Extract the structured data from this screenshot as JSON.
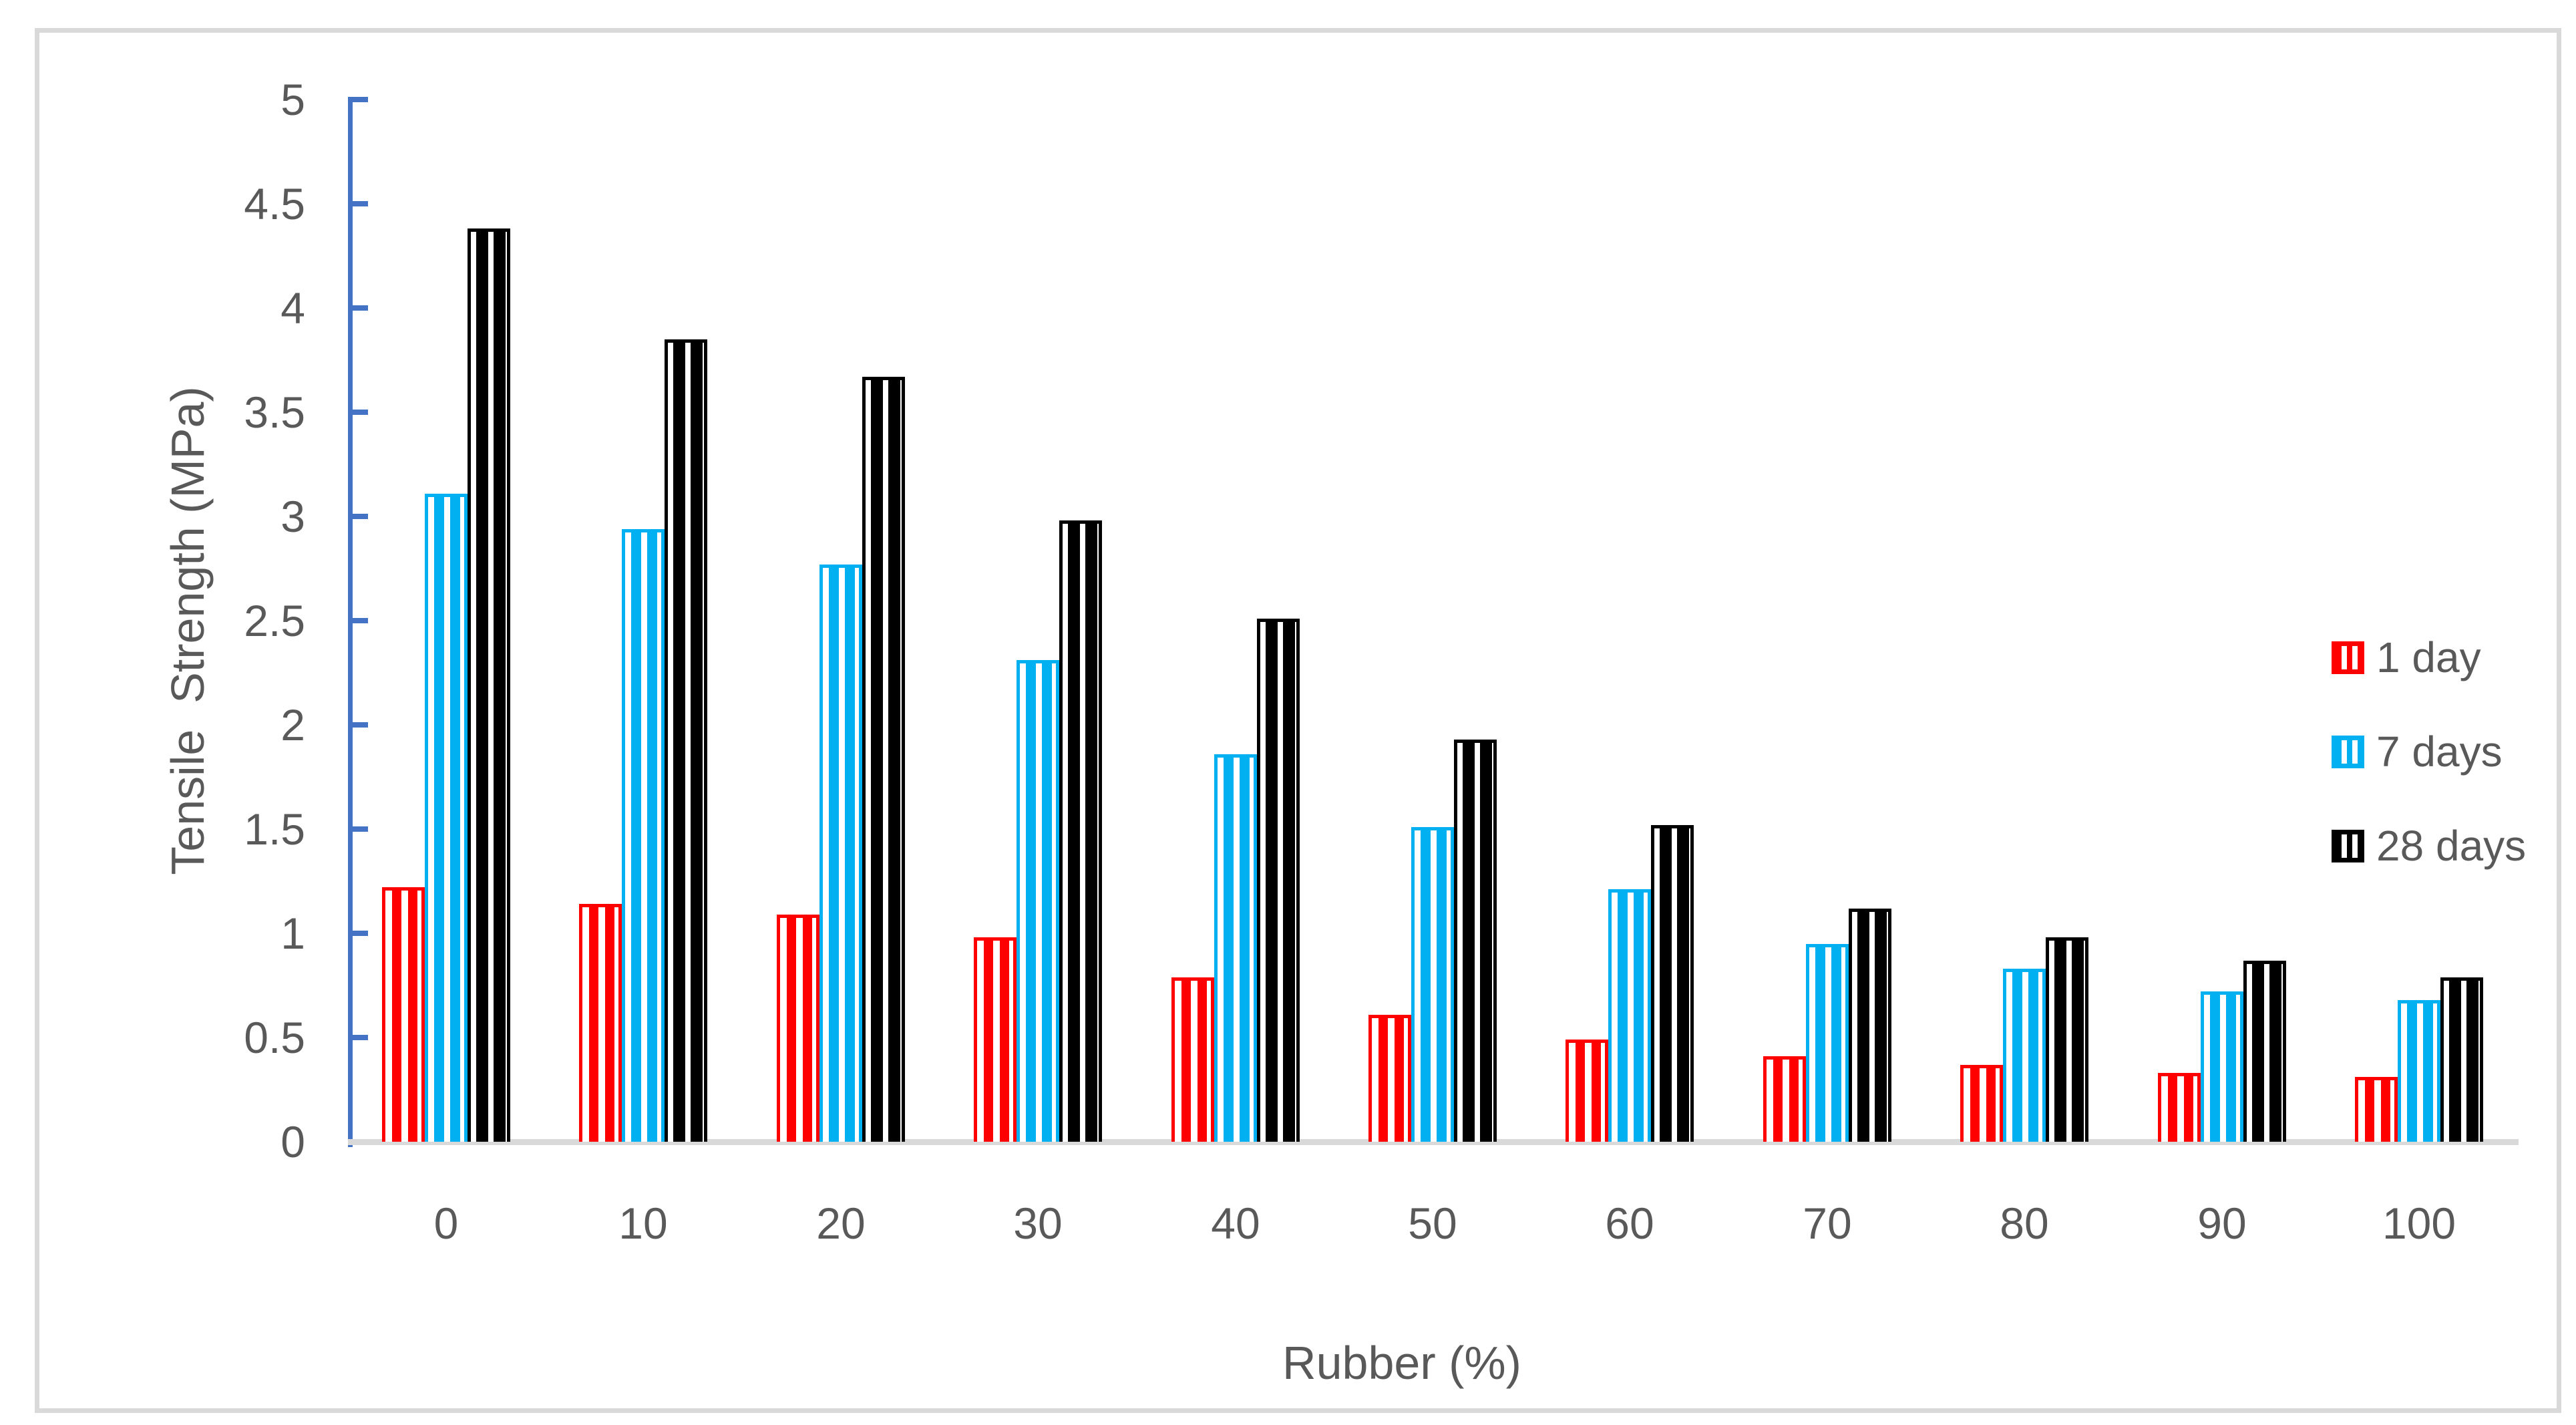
{
  "figure": {
    "description": "Grouped bar chart of tensile strength versus rubber content with striped pattern bars"
  },
  "colors": {
    "axis_line": "#4472C4",
    "label_text": "#595959",
    "x_baseline": "#D9D9D9",
    "figure_border": "#D9D9D9",
    "series_1_day": "#FF0000",
    "series_7_days": "#00B0F0",
    "series_28_days": "#000000"
  },
  "chart_data": {
    "type": "bar",
    "title": "",
    "xlabel": "Rubber (%)",
    "ylabel": "Tensile  Strength (MPa)",
    "categories": [
      "0",
      "10",
      "20",
      "30",
      "40",
      "50",
      "60",
      "70",
      "80",
      "90",
      "100"
    ],
    "series": [
      {
        "name": "1 day",
        "color": "#FF0000",
        "values": [
          1.22,
          1.14,
          1.09,
          0.98,
          0.79,
          0.61,
          0.49,
          0.41,
          0.37,
          0.33,
          0.31
        ]
      },
      {
        "name": "7 days",
        "color": "#00B0F0",
        "values": [
          3.11,
          2.94,
          2.77,
          2.31,
          1.86,
          1.51,
          1.21,
          0.95,
          0.83,
          0.72,
          0.68
        ]
      },
      {
        "name": "28 days",
        "color": "#000000",
        "values": [
          4.38,
          3.85,
          3.67,
          2.98,
          2.51,
          1.93,
          1.52,
          1.12,
          0.98,
          0.87,
          0.79
        ]
      }
    ],
    "ylim": [
      0,
      5
    ],
    "ytick_step": 0.5,
    "yticks": [
      "0",
      "0.5",
      "1",
      "1.5",
      "2",
      "2.5",
      "3",
      "3.5",
      "4",
      "4.5",
      "5"
    ],
    "grid": false,
    "bar_fill_pattern": "vertical-stripes",
    "legend": {
      "position": "middle-right",
      "entries": [
        "1 day",
        "7 days",
        "28 days"
      ]
    }
  }
}
